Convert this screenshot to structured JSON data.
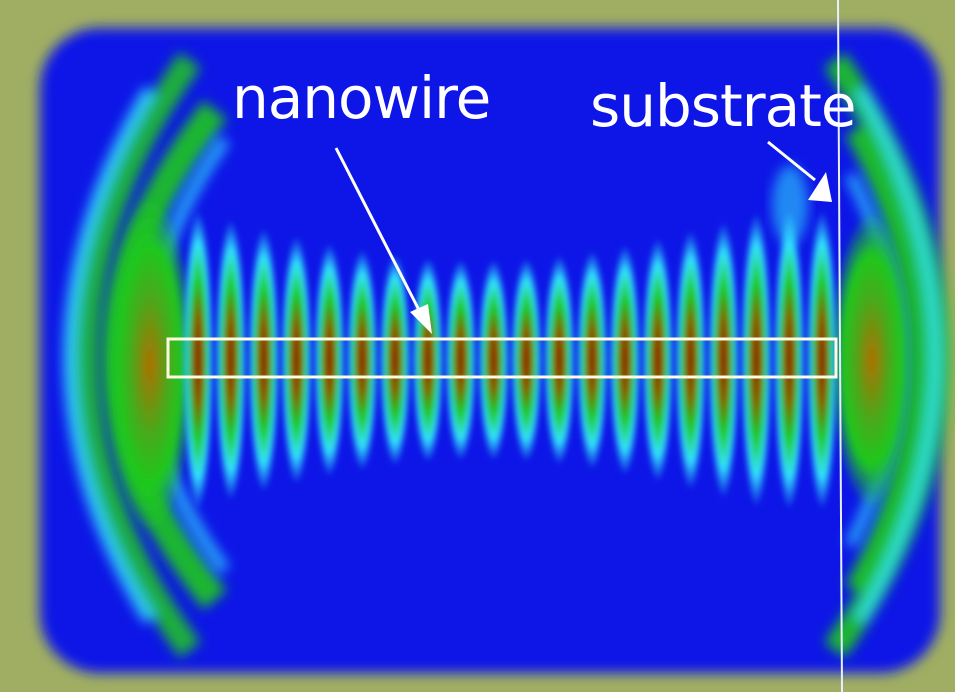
{
  "labels": {
    "nanowire": "nanowire",
    "substrate": "substrate"
  },
  "colors": {
    "background": "#0a14e6",
    "frame": "#9fae62",
    "field_peak": "#8a1a00",
    "field_mid": "#1ec81e",
    "field_edge": "#32e6ff",
    "nanowire_outline": "#fffbe0",
    "annotation": "#ffffff"
  },
  "field_pattern": {
    "lobes_along_wire": 20
  }
}
